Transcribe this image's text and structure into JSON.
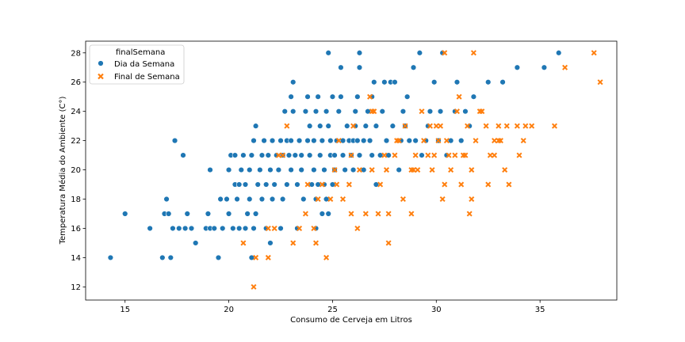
{
  "chart_data": {
    "type": "scatter",
    "xlabel": "Consumo de Cerveja em Litros",
    "ylabel": "Temperatura Média do Ambiente (C°)",
    "xlim": [
      13.1,
      38.7
    ],
    "ylim": [
      11.1,
      28.8
    ],
    "xticks": [
      15,
      20,
      25,
      30,
      35
    ],
    "yticks": [
      12,
      14,
      16,
      18,
      20,
      22,
      24,
      26,
      28
    ],
    "grid": false,
    "legend": {
      "title": "finalSemana",
      "placement": "top-left",
      "entries": [
        "Dia da Semana",
        "Final de Semana"
      ]
    },
    "series": [
      {
        "name": "Dia da Semana",
        "color": "#1f77b4",
        "marker": "circle",
        "points": [
          [
            14.3,
            14
          ],
          [
            15.0,
            17
          ],
          [
            16.2,
            16
          ],
          [
            16.8,
            14
          ],
          [
            16.9,
            17
          ],
          [
            17.0,
            18
          ],
          [
            17.1,
            17
          ],
          [
            17.2,
            14
          ],
          [
            17.3,
            16
          ],
          [
            17.4,
            22
          ],
          [
            17.6,
            16
          ],
          [
            17.8,
            21
          ],
          [
            17.9,
            16
          ],
          [
            18.0,
            17
          ],
          [
            18.2,
            16
          ],
          [
            18.4,
            15
          ],
          [
            18.9,
            16
          ],
          [
            19.0,
            17
          ],
          [
            19.1,
            16
          ],
          [
            19.1,
            20
          ],
          [
            19.3,
            16
          ],
          [
            19.5,
            14
          ],
          [
            19.6,
            18
          ],
          [
            19.7,
            16
          ],
          [
            19.9,
            18
          ],
          [
            20.0,
            17
          ],
          [
            20.0,
            20
          ],
          [
            20.1,
            21
          ],
          [
            20.2,
            16
          ],
          [
            20.3,
            19
          ],
          [
            20.3,
            21
          ],
          [
            20.4,
            18
          ],
          [
            20.5,
            19
          ],
          [
            20.5,
            16
          ],
          [
            20.6,
            20
          ],
          [
            20.7,
            21
          ],
          [
            20.8,
            19
          ],
          [
            20.8,
            16
          ],
          [
            20.9,
            17
          ],
          [
            21.0,
            18
          ],
          [
            21.0,
            20
          ],
          [
            21.1,
            21
          ],
          [
            21.1,
            14
          ],
          [
            21.2,
            22
          ],
          [
            21.2,
            16
          ],
          [
            21.3,
            17
          ],
          [
            21.3,
            23
          ],
          [
            21.4,
            19
          ],
          [
            21.5,
            20
          ],
          [
            21.6,
            21
          ],
          [
            21.6,
            18
          ],
          [
            21.7,
            22
          ],
          [
            21.8,
            16
          ],
          [
            21.8,
            19
          ],
          [
            21.9,
            21
          ],
          [
            22.0,
            15
          ],
          [
            22.0,
            20
          ],
          [
            22.1,
            18
          ],
          [
            22.1,
            22
          ],
          [
            22.2,
            19
          ],
          [
            22.3,
            21
          ],
          [
            22.4,
            20
          ],
          [
            22.5,
            22
          ],
          [
            22.5,
            16
          ],
          [
            22.6,
            21
          ],
          [
            22.6,
            18
          ],
          [
            22.7,
            24
          ],
          [
            22.8,
            22
          ],
          [
            22.8,
            19
          ],
          [
            22.9,
            21
          ],
          [
            23.0,
            20
          ],
          [
            23.0,
            25
          ],
          [
            23.0,
            22
          ],
          [
            23.1,
            26
          ],
          [
            23.1,
            24
          ],
          [
            23.2,
            21
          ],
          [
            23.3,
            19
          ],
          [
            23.3,
            16
          ],
          [
            23.4,
            22
          ],
          [
            23.5,
            20
          ],
          [
            23.5,
            21
          ],
          [
            23.6,
            18
          ],
          [
            23.7,
            24
          ],
          [
            23.8,
            25
          ],
          [
            23.8,
            22
          ],
          [
            23.9,
            23
          ],
          [
            23.9,
            21
          ],
          [
            24.0,
            19
          ],
          [
            24.1,
            22
          ],
          [
            24.1,
            20
          ],
          [
            24.2,
            24
          ],
          [
            24.2,
            18
          ],
          [
            24.2,
            16
          ],
          [
            24.3,
            19
          ],
          [
            24.3,
            25
          ],
          [
            24.4,
            21
          ],
          [
            24.4,
            23
          ],
          [
            24.5,
            22
          ],
          [
            24.5,
            17
          ],
          [
            24.6,
            20
          ],
          [
            24.6,
            19
          ],
          [
            24.7,
            24
          ],
          [
            24.7,
            18
          ],
          [
            24.8,
            17
          ],
          [
            24.8,
            23
          ],
          [
            24.8,
            28
          ],
          [
            24.9,
            21
          ],
          [
            24.9,
            22
          ],
          [
            25.0,
            19
          ],
          [
            25.0,
            25
          ],
          [
            25.1,
            20
          ],
          [
            25.1,
            21
          ],
          [
            25.2,
            22
          ],
          [
            25.3,
            24
          ],
          [
            25.4,
            27
          ],
          [
            25.4,
            25
          ],
          [
            25.5,
            22
          ],
          [
            25.5,
            21
          ],
          [
            25.6,
            20
          ],
          [
            25.7,
            23
          ],
          [
            25.8,
            22
          ],
          [
            25.9,
            21
          ],
          [
            26.0,
            22
          ],
          [
            26.0,
            20
          ],
          [
            26.1,
            24
          ],
          [
            26.1,
            23
          ],
          [
            26.2,
            22
          ],
          [
            26.2,
            25
          ],
          [
            26.3,
            27
          ],
          [
            26.3,
            21
          ],
          [
            26.3,
            28
          ],
          [
            26.5,
            22
          ],
          [
            26.5,
            20
          ],
          [
            26.6,
            23
          ],
          [
            26.7,
            24
          ],
          [
            26.8,
            22
          ],
          [
            26.9,
            21
          ],
          [
            26.9,
            25
          ],
          [
            27.0,
            26
          ],
          [
            27.1,
            23
          ],
          [
            27.1,
            19
          ],
          [
            27.3,
            21
          ],
          [
            27.4,
            24
          ],
          [
            27.5,
            26
          ],
          [
            27.6,
            22
          ],
          [
            27.7,
            21
          ],
          [
            27.8,
            26
          ],
          [
            27.9,
            23
          ],
          [
            28.0,
            26
          ],
          [
            28.2,
            20
          ],
          [
            28.3,
            22
          ],
          [
            28.4,
            24
          ],
          [
            28.5,
            23
          ],
          [
            28.6,
            25
          ],
          [
            28.7,
            22
          ],
          [
            28.9,
            27
          ],
          [
            29.0,
            22
          ],
          [
            29.2,
            28
          ],
          [
            29.3,
            21
          ],
          [
            29.5,
            22
          ],
          [
            29.6,
            23
          ],
          [
            29.7,
            24
          ],
          [
            29.9,
            26
          ],
          [
            30.1,
            22
          ],
          [
            30.2,
            24
          ],
          [
            30.3,
            28
          ],
          [
            30.5,
            21
          ],
          [
            30.7,
            22
          ],
          [
            30.9,
            24
          ],
          [
            31.0,
            26
          ],
          [
            31.2,
            22
          ],
          [
            31.4,
            24
          ],
          [
            31.6,
            23
          ],
          [
            31.8,
            25
          ],
          [
            32.5,
            26
          ],
          [
            33.2,
            26
          ],
          [
            33.9,
            27
          ],
          [
            35.2,
            27
          ],
          [
            35.9,
            28
          ]
        ]
      },
      {
        "name": "Final de Semana",
        "color": "#ff7f0e",
        "marker": "x",
        "points": [
          [
            21.2,
            12
          ],
          [
            21.3,
            14
          ],
          [
            20.7,
            15
          ],
          [
            21.9,
            14
          ],
          [
            21.9,
            16
          ],
          [
            22.2,
            16
          ],
          [
            22.4,
            21
          ],
          [
            22.6,
            21
          ],
          [
            22.8,
            23
          ],
          [
            23.1,
            15
          ],
          [
            23.4,
            16
          ],
          [
            23.7,
            17
          ],
          [
            24.1,
            16
          ],
          [
            24.2,
            15
          ],
          [
            24.3,
            18
          ],
          [
            24.7,
            14
          ],
          [
            24.9,
            18
          ],
          [
            25.1,
            20
          ],
          [
            25.2,
            19
          ],
          [
            25.5,
            18
          ],
          [
            25.8,
            19
          ],
          [
            25.9,
            17
          ],
          [
            25.9,
            21
          ],
          [
            26.2,
            16
          ],
          [
            26.3,
            20
          ],
          [
            26.6,
            17
          ],
          [
            26.8,
            25
          ],
          [
            26.9,
            20
          ],
          [
            27.2,
            17
          ],
          [
            27.3,
            19
          ],
          [
            27.5,
            21
          ],
          [
            27.6,
            20
          ],
          [
            27.7,
            15
          ],
          [
            27.7,
            17
          ],
          [
            28.0,
            21
          ],
          [
            28.1,
            22
          ],
          [
            28.2,
            22
          ],
          [
            28.4,
            18
          ],
          [
            28.5,
            23
          ],
          [
            28.8,
            20
          ],
          [
            28.8,
            17
          ],
          [
            29.0,
            21
          ],
          [
            29.1,
            20
          ],
          [
            29.3,
            24
          ],
          [
            29.4,
            22
          ],
          [
            29.7,
            23
          ],
          [
            29.8,
            20
          ],
          [
            29.9,
            21
          ],
          [
            30.0,
            23
          ],
          [
            30.1,
            22
          ],
          [
            30.3,
            18
          ],
          [
            30.4,
            19
          ],
          [
            30.5,
            22
          ],
          [
            30.6,
            21
          ],
          [
            30.7,
            20
          ],
          [
            31.0,
            24
          ],
          [
            31.1,
            25
          ],
          [
            31.2,
            19
          ],
          [
            31.4,
            21
          ],
          [
            31.6,
            17
          ],
          [
            31.7,
            20
          ],
          [
            31.7,
            18
          ],
          [
            31.8,
            28
          ],
          [
            31.9,
            22
          ],
          [
            32.1,
            24
          ],
          [
            32.4,
            23
          ],
          [
            32.5,
            19
          ],
          [
            32.6,
            21
          ],
          [
            32.8,
            22
          ],
          [
            33.0,
            23
          ],
          [
            33.1,
            22
          ],
          [
            33.3,
            20
          ],
          [
            33.4,
            23
          ],
          [
            33.5,
            19
          ],
          [
            33.9,
            23
          ],
          [
            34.2,
            22
          ],
          [
            34.3,
            23
          ],
          [
            34.6,
            23
          ],
          [
            35.7,
            23
          ],
          [
            36.2,
            27
          ],
          [
            37.6,
            28
          ],
          [
            37.9,
            26
          ],
          [
            34.0,
            21
          ],
          [
            32.2,
            24
          ],
          [
            31.5,
            23
          ],
          [
            30.9,
            21
          ],
          [
            30.4,
            28
          ],
          [
            32.8,
            21
          ],
          [
            27.0,
            24
          ],
          [
            28.9,
            20
          ],
          [
            23.8,
            19
          ],
          [
            25.3,
            22
          ],
          [
            26.9,
            24
          ],
          [
            30.2,
            23
          ],
          [
            33.0,
            22
          ],
          [
            29.6,
            21
          ],
          [
            24.5,
            19
          ],
          [
            31.3,
            21
          ],
          [
            26.0,
            23
          ]
        ]
      }
    ]
  }
}
